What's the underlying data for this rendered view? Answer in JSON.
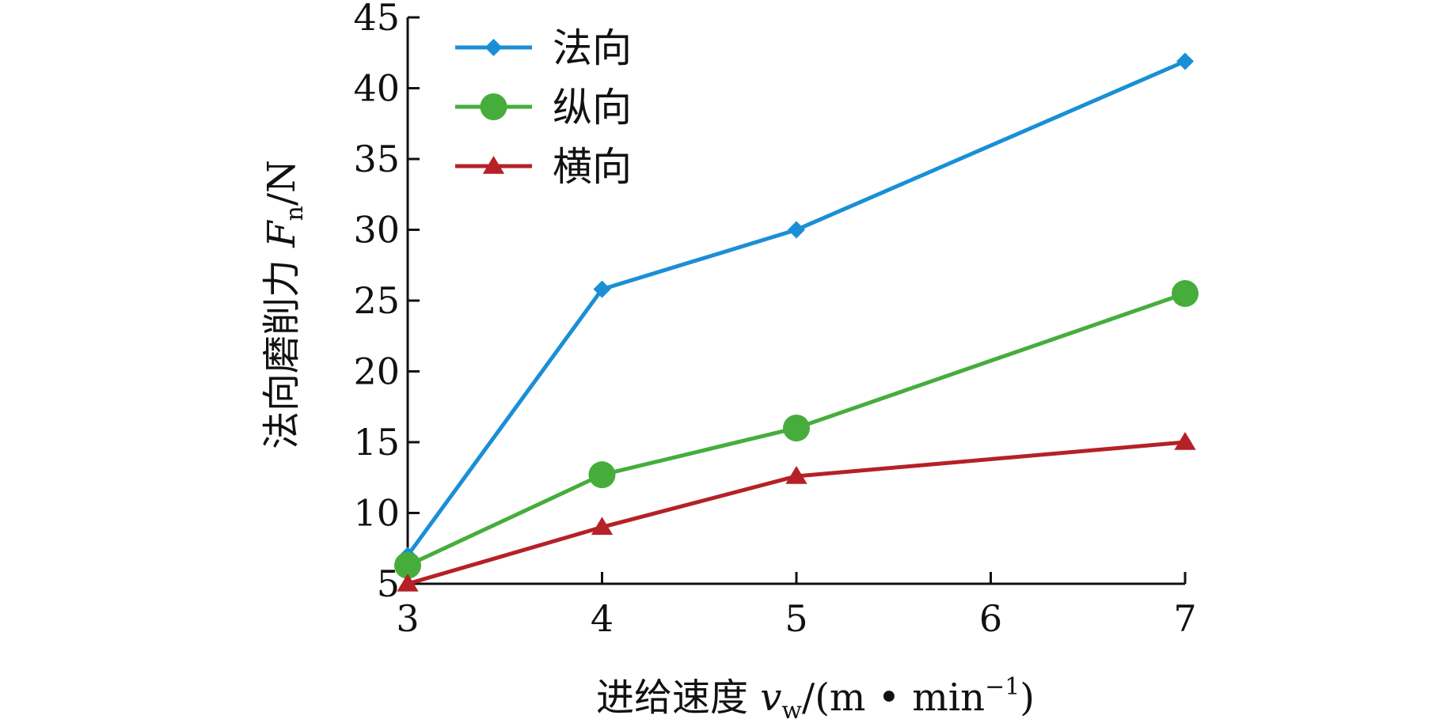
{
  "chart_data": {
    "type": "line",
    "xlabel": {
      "prefix": "进给速度 ",
      "var": "v",
      "sub": "w",
      "unit_open": "/(m • min",
      "sup": "−1",
      "unit_close": ")"
    },
    "ylabel": {
      "prefix": "法向磨削力 ",
      "var": "F",
      "sub": "n",
      "unit": "/N"
    },
    "xlim": [
      3,
      7
    ],
    "ylim": [
      5,
      45
    ],
    "x_ticks": [
      3,
      4,
      5,
      6,
      7
    ],
    "y_ticks": [
      5,
      10,
      15,
      20,
      25,
      30,
      35,
      40,
      45
    ],
    "grid": false,
    "legend_position": "top-left",
    "series": [
      {
        "name": "法向",
        "marker": "diamond",
        "color": "#1a8fd6",
        "x": [
          3,
          4,
          5,
          7
        ],
        "values": [
          7.0,
          25.8,
          30.0,
          41.9
        ]
      },
      {
        "name": "纵向",
        "marker": "circle",
        "color": "#46ad3c",
        "x": [
          3,
          4,
          5,
          7
        ],
        "values": [
          6.3,
          12.7,
          16.0,
          25.5
        ]
      },
      {
        "name": "横向",
        "marker": "triangle",
        "color": "#b52126",
        "x": [
          3,
          4,
          5,
          7
        ],
        "values": [
          5.0,
          9.0,
          12.6,
          15.0
        ]
      }
    ]
  }
}
